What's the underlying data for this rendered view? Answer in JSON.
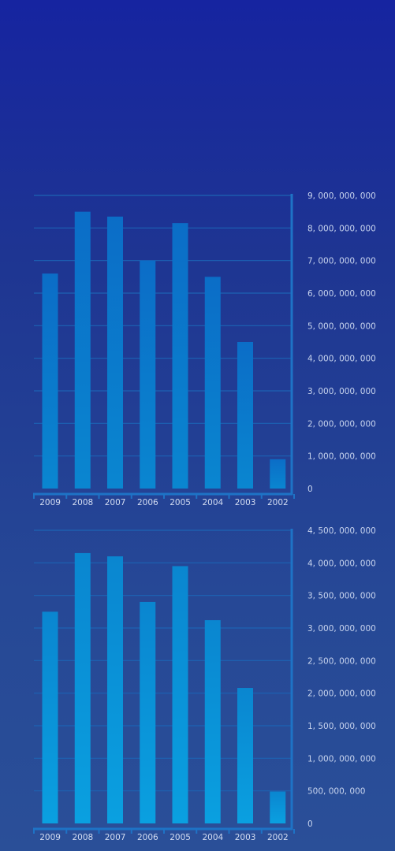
{
  "chart_data": [
    {
      "type": "bar",
      "categories": [
        "2009",
        "2008",
        "2007",
        "2006",
        "2005",
        "2004",
        "2003",
        "2002"
      ],
      "values": [
        6600000000,
        8500000000,
        8350000000,
        7000000000,
        8150000000,
        6500000000,
        4500000000,
        900000000
      ],
      "ylim": [
        0,
        9000000000
      ],
      "ytick_values": [
        0,
        1000000000,
        2000000000,
        3000000000,
        4000000000,
        5000000000,
        6000000000,
        7000000000,
        8000000000,
        9000000000
      ],
      "ytick_labels": [
        "0",
        "1, 000, 000, 000",
        "2, 000, 000, 000",
        "3, 000, 000, 000",
        "4, 000, 000, 000",
        "5, 000, 000, 000",
        "6, 000, 000, 000",
        "7, 000, 000, 000",
        "8, 000, 000, 000",
        "9, 000, 000, 000"
      ],
      "y_axis_position": "right",
      "grid": true,
      "colors": {
        "bar_top": "#0b6dc7",
        "bar_bottom": "#0a86d0"
      }
    },
    {
      "type": "bar",
      "categories": [
        "2009",
        "2008",
        "2007",
        "2006",
        "2005",
        "2004",
        "2003",
        "2002"
      ],
      "values": [
        3250000000,
        4150000000,
        4100000000,
        3400000000,
        3950000000,
        3120000000,
        2080000000,
        490000000
      ],
      "ylim": [
        0,
        4500000000
      ],
      "ytick_values": [
        0,
        500000000,
        1000000000,
        1500000000,
        2000000000,
        2500000000,
        3000000000,
        3500000000,
        4000000000,
        4500000000
      ],
      "ytick_labels": [
        "0",
        "500, 000, 000",
        "1, 000, 000, 000",
        "1, 500, 000, 000",
        "2, 000, 000, 000",
        "2, 500, 000, 000",
        "3, 000, 000, 000",
        "3, 500, 000, 000",
        "4, 000, 000, 000",
        "4, 500, 000, 000"
      ],
      "y_axis_position": "right",
      "grid": true,
      "colors": {
        "bar_top": "#0a86d0",
        "bar_bottom": "#0aa0e0"
      }
    }
  ]
}
